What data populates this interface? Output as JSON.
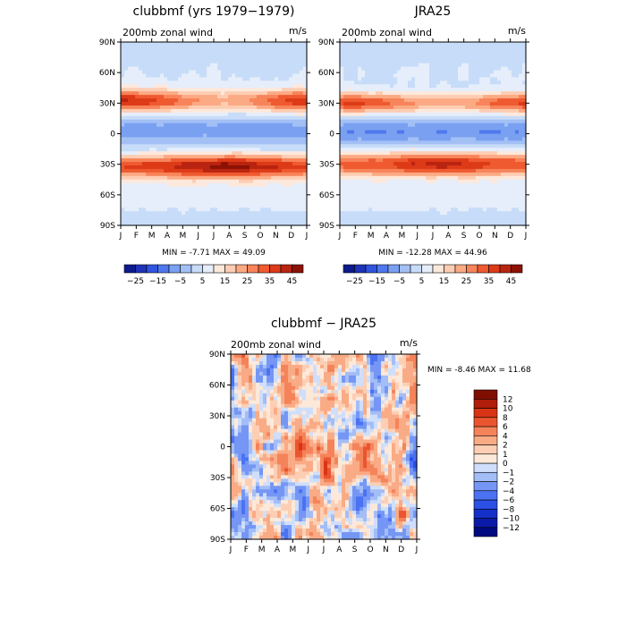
{
  "chart_data": [
    {
      "type": "heatmap",
      "title": "clubbmf (yrs 1979−1979)",
      "left_label": "200mb zonal wind",
      "right_label": "m/s",
      "x_tick_labels": [
        "J",
        "F",
        "M",
        "A",
        "M",
        "J",
        "J",
        "A",
        "S",
        "O",
        "N",
        "D",
        "J"
      ],
      "y_tick_labels": [
        "90N",
        "60N",
        "30N",
        "0",
        "30S",
        "60S",
        "90S"
      ],
      "xlim": [
        0,
        12
      ],
      "ylim": [
        -90,
        90
      ],
      "stats": "MIN =   -7.71 MAX =   49.09",
      "min": -7.71,
      "max": 49.09,
      "colorbar_labels": [
        "−25",
        "−15",
        "−5",
        "5",
        "15",
        "25",
        "35",
        "45"
      ],
      "levels": [
        -30,
        -25,
        -20,
        -15,
        -10,
        -5,
        0,
        5,
        10,
        15,
        20,
        25,
        30,
        35,
        40,
        45
      ],
      "colors": [
        "#0d1a8c",
        "#1f33b8",
        "#2f55e0",
        "#4f78ee",
        "#7aa0f2",
        "#a3c0f5",
        "#c7dcf8",
        "#e6eefb",
        "#fde9dc",
        "#fdcdb3",
        "#fbaa84",
        "#f7845a",
        "#ef5a30",
        "#dd3a18",
        "#b92410",
        "#8c1206"
      ],
      "features": [
        {
          "kind": "jet",
          "lat": 32,
          "width": 11,
          "amp": 28,
          "phase": 12.5,
          "lon_amp": 9
        },
        {
          "kind": "jet",
          "lat": -32,
          "width": 12,
          "amp": 40,
          "phase": 6.5,
          "lon_amp": 6
        },
        {
          "kind": "trop",
          "lat": 3,
          "width": 10,
          "amp": -8,
          "phase": 6.5
        }
      ]
    },
    {
      "type": "heatmap",
      "title": "JRA25",
      "left_label": "200mb zonal wind",
      "right_label": "m/s",
      "x_tick_labels": [
        "J",
        "F",
        "M",
        "A",
        "M",
        "J",
        "J",
        "A",
        "S",
        "O",
        "N",
        "D",
        "J"
      ],
      "y_tick_labels": [
        "90N",
        "60N",
        "30N",
        "0",
        "30S",
        "60S",
        "90S"
      ],
      "xlim": [
        0,
        12
      ],
      "ylim": [
        -90,
        90
      ],
      "stats": "MIN =  -12.28 MAX =   44.96",
      "min": -12.28,
      "max": 44.96,
      "colorbar_labels": [
        "−25",
        "−15",
        "−5",
        "5",
        "15",
        "25",
        "35",
        "45"
      ],
      "levels": [
        -30,
        -25,
        -20,
        -15,
        -10,
        -5,
        0,
        5,
        10,
        15,
        20,
        25,
        30,
        35,
        40,
        45
      ],
      "colors": [
        "#0d1a8c",
        "#1f33b8",
        "#2f55e0",
        "#4f78ee",
        "#7aa0f2",
        "#a3c0f5",
        "#c7dcf8",
        "#e6eefb",
        "#fde9dc",
        "#fdcdb3",
        "#fbaa84",
        "#f7845a",
        "#ef5a30",
        "#dd3a18",
        "#b92410",
        "#8c1206"
      ],
      "features": [
        {
          "kind": "jet",
          "lat": 30,
          "width": 10,
          "amp": 26,
          "phase": 12.5,
          "lon_amp": 7
        },
        {
          "kind": "jet",
          "lat": -30,
          "width": 12,
          "amp": 36,
          "phase": 6.5,
          "lon_amp": 5
        },
        {
          "kind": "trop",
          "lat": 2,
          "width": 10,
          "amp": -10,
          "phase": 6.5
        }
      ]
    },
    {
      "type": "heatmap",
      "title": "clubbmf − JRA25",
      "left_label": "200mb zonal wind",
      "right_label": "m/s",
      "x_tick_labels": [
        "J",
        "F",
        "M",
        "A",
        "M",
        "J",
        "J",
        "A",
        "S",
        "O",
        "N",
        "D",
        "J"
      ],
      "y_tick_labels": [
        "90N",
        "60N",
        "30N",
        "0",
        "30S",
        "60S",
        "90S"
      ],
      "xlim": [
        0,
        12
      ],
      "ylim": [
        -90,
        90
      ],
      "stats": "MIN =   -8.46 MAX =   11.68",
      "min": -8.46,
      "max": 11.68,
      "colorbar_labels": [
        "12",
        "10",
        "8",
        "6",
        "4",
        "2",
        "1",
        "0",
        "−1",
        "−2",
        "−4",
        "−6",
        "−8",
        "−10",
        "−12"
      ],
      "levels": [
        -14,
        -12,
        -10,
        -8,
        -6,
        -4,
        -2,
        -1,
        0,
        1,
        2,
        4,
        6,
        8,
        10,
        12
      ],
      "colors": [
        "#000a80",
        "#0a1aa8",
        "#1530c8",
        "#2a50e6",
        "#4a72f2",
        "#7596f4",
        "#a3bdf6",
        "#cfdffb",
        "#fde9da",
        "#fccfb4",
        "#f9ab86",
        "#f5835a",
        "#ea5530",
        "#d83415",
        "#b01d0a",
        "#800f02"
      ],
      "features": []
    }
  ]
}
